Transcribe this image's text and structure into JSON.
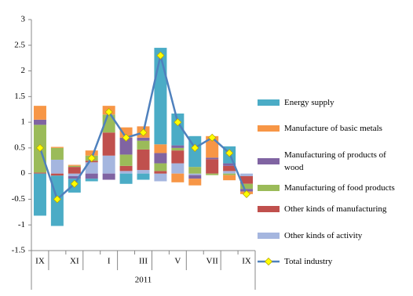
{
  "chart_data": {
    "type": "bar-line",
    "categories": [
      "IX",
      null,
      "XI",
      null,
      "I",
      null,
      "III",
      null,
      "V",
      null,
      "VII",
      null,
      "IX"
    ],
    "x_group_label": "2011",
    "series": [
      {
        "name": "Energy supply",
        "color": "#4bacc6",
        "values": [
          -0.82,
          -0.98,
          -0.27,
          -0.05,
          0,
          -0.2,
          -0.12,
          1.88,
          0.62,
          0.6,
          0,
          0.33,
          0
        ]
      },
      {
        "name": "Manufacture of basic metals",
        "color": "#f79646",
        "values": [
          0.27,
          0.02,
          0.02,
          0.1,
          0.17,
          0.2,
          0.22,
          0.17,
          -0.17,
          -0.13,
          0.42,
          -0.1,
          -0.05
        ]
      },
      {
        "name": "Manufacturing of products of wood",
        "color": "#8064a2",
        "values": [
          0.1,
          0,
          -0.05,
          -0.1,
          -0.12,
          0.33,
          0.06,
          0.2,
          0.05,
          -0.07,
          0.03,
          0.05,
          -0.05
        ]
      },
      {
        "name": "Manufacturing of food products",
        "color": "#9bbb59",
        "values": [
          0.93,
          0.23,
          0.02,
          0.1,
          0.35,
          0.22,
          0.17,
          0.15,
          0.05,
          0.13,
          -0.03,
          -0.03,
          -0.1
        ]
      },
      {
        "name": "Other kinds of manufacturing",
        "color": "#c0504d",
        "values": [
          0.02,
          -0.04,
          0.13,
          0.03,
          0.45,
          0.1,
          0.4,
          0.05,
          0.25,
          0,
          0.28,
          0.1,
          -0.15
        ]
      },
      {
        "name": "Other kinds of activity",
        "color": "#a5b6df",
        "values": [
          0,
          0.27,
          -0.05,
          0.22,
          0.35,
          0.05,
          0.07,
          -0.15,
          0.2,
          -0.03,
          0,
          0.05,
          -0.05
        ]
      },
      {
        "name": "Total industry",
        "type": "line",
        "color": "#4f81bd",
        "marker_color": "#ffff00",
        "values": [
          0.5,
          -0.5,
          -0.2,
          0.3,
          1.2,
          0.7,
          0.8,
          2.3,
          1.0,
          0.5,
          0.7,
          0.4,
          -0.4
        ]
      }
    ],
    "ylim": [
      -1.5,
      3
    ],
    "yticks": [
      -1.5,
      -1,
      -0.5,
      0,
      0.5,
      1,
      1.5,
      2,
      2.5,
      3
    ]
  }
}
